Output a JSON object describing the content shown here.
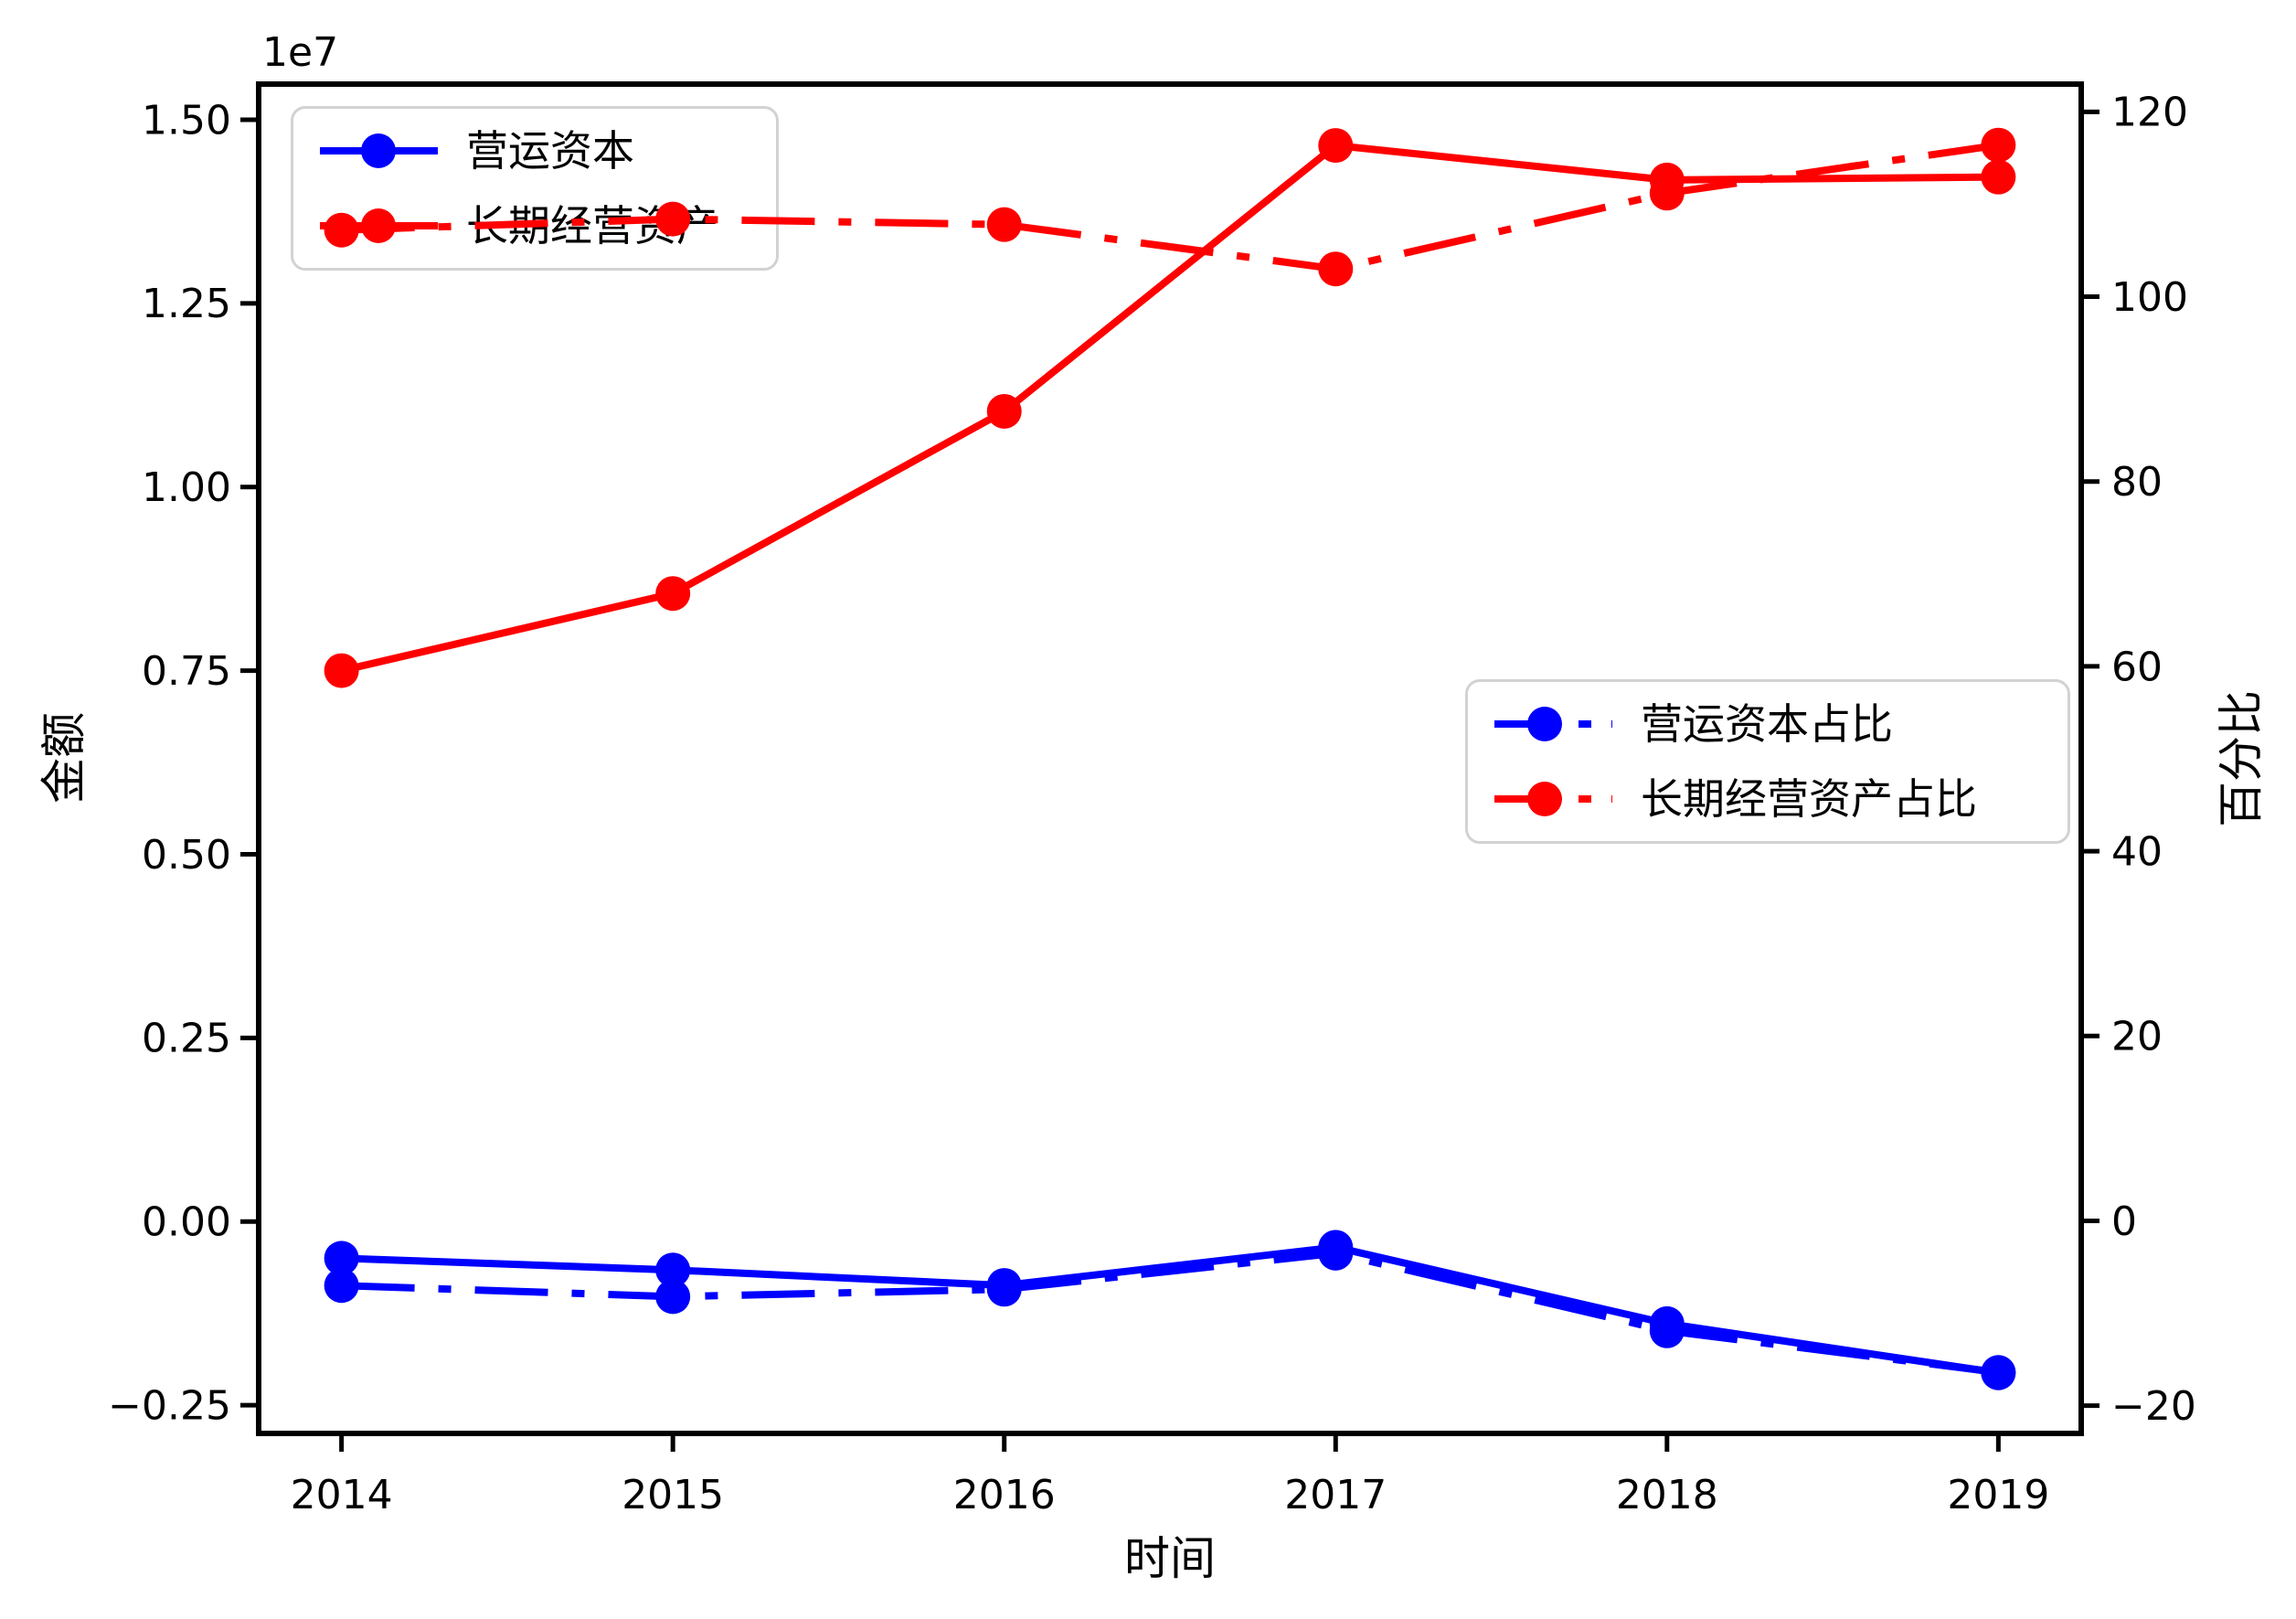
{
  "figure": {
    "xlabel": "时间",
    "ylabel_left": "金额",
    "ylabel_right": "百分比",
    "offset_text": "1e7"
  },
  "colors": {
    "blue": "#0000ff",
    "red": "#ff0000",
    "axis": "#000000",
    "legend_edge": "#d2d2d2",
    "background": "#ffffff"
  },
  "chart_data": {
    "type": "line",
    "x": [
      2014,
      2015,
      2016,
      2017,
      2018,
      2019
    ],
    "xlim": [
      2013.75,
      2019.25
    ],
    "ylim_left": [
      -2885000,
      15485000
    ],
    "ylim_right": [
      -23,
      123
    ],
    "grid": false,
    "x_ticks": {
      "values": [
        2014,
        2015,
        2016,
        2017,
        2018,
        2019
      ],
      "labels": [
        "2014",
        "2015",
        "2016",
        "2017",
        "2018",
        "2019"
      ]
    },
    "y_ticks_left": {
      "offset": "1e7",
      "values": [
        15000000,
        12500000,
        10000000,
        7500000,
        5000000,
        2500000,
        0,
        -2500000
      ],
      "labels": [
        "1.50",
        "1.25",
        "1.00",
        "0.75",
        "0.50",
        "0.25",
        "0.00",
        "−0.25"
      ]
    },
    "y_ticks_right": {
      "values": [
        120,
        100,
        80,
        60,
        40,
        20,
        0,
        -20
      ],
      "labels": [
        "120",
        "100",
        "80",
        "60",
        "40",
        "20",
        "0",
        "−20"
      ]
    },
    "series": [
      {
        "id": "working-capital",
        "name": "营运资本",
        "axis": "left",
        "color": "#0000ff",
        "style": "solid",
        "marker": "o",
        "values": [
          -500000,
          -660000,
          -870000,
          -350000,
          -1390000,
          -2060000
        ]
      },
      {
        "id": "long-term-operating-assets",
        "name": "长期经营资产",
        "axis": "left",
        "color": "#ff0000",
        "style": "solid",
        "marker": "o",
        "values": [
          7500000,
          8550000,
          11030000,
          14650000,
          14180000,
          14220000
        ]
      },
      {
        "id": "working-capital-ratio",
        "name": "营运资本占比",
        "axis": "right",
        "color": "#0000ff",
        "style": "dashdot",
        "marker": "o",
        "values": [
          -7.0,
          -8.2,
          -7.4,
          -3.5,
          -11.9,
          -16.4
        ]
      },
      {
        "id": "long-term-operating-assets-ratio",
        "name": "长期经营资产占比",
        "axis": "right",
        "color": "#ff0000",
        "style": "dashdot",
        "marker": "o",
        "values": [
          107.2,
          108.4,
          107.8,
          103.0,
          111.2,
          116.4
        ]
      }
    ],
    "legend_left_axis": {
      "position": "upper-left",
      "items": [
        {
          "label": "营运资本",
          "series": 0
        },
        {
          "label": "长期经营资产",
          "series": 1
        }
      ]
    },
    "legend_right_axis": {
      "position": "center-right",
      "items": [
        {
          "label": "营运资本占比",
          "series": 2
        },
        {
          "label": "长期经营资产占比",
          "series": 3
        }
      ]
    }
  }
}
